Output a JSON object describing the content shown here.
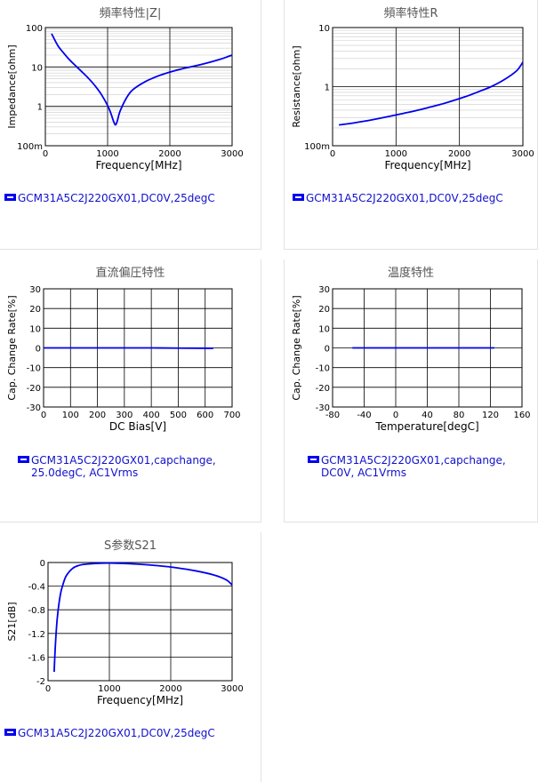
{
  "colors": {
    "series": "#0000ee",
    "grid": "#000000",
    "minor_grid": "#cccccc",
    "legend_text": "#1010cc",
    "title": "#555555"
  },
  "chart_data": [
    {
      "id": "impedance",
      "type": "line",
      "title": "頻率特性|Z|",
      "xlabel": "Frequency[MHz]",
      "ylabel": "Impedance[ohm]",
      "xlim": [
        0,
        3000
      ],
      "ylim": [
        0.1,
        100
      ],
      "y_scale": "log",
      "x_ticks": [
        "0",
        "1000",
        "2000",
        "3000"
      ],
      "y_ticks": [
        "100m",
        "1",
        "10",
        "100"
      ],
      "y_tick_values": [
        0.1,
        1,
        10,
        100
      ],
      "legend": "GCM31A5C2J220GX01,DC0V,25degC",
      "series": [
        {
          "x": [
            100,
            200,
            300,
            400,
            500,
            600,
            700,
            800,
            900,
            1000,
            1050,
            1100,
            1130,
            1160,
            1200,
            1300,
            1400,
            1600,
            1800,
            2000,
            2200,
            2500,
            2800,
            3000
          ],
          "y": [
            70,
            35,
            22,
            14.5,
            10.2,
            7.2,
            5.0,
            3.3,
            2.0,
            1.05,
            0.68,
            0.4,
            0.34,
            0.45,
            0.75,
            1.6,
            2.6,
            4.2,
            5.8,
            7.4,
            9.0,
            11.5,
            15.5,
            20
          ]
        }
      ]
    },
    {
      "id": "resistance",
      "type": "line",
      "title": "頻率特性R",
      "xlabel": "Frequency[MHz]",
      "ylabel": "Resistance[ohm]",
      "xlim": [
        0,
        3000
      ],
      "ylim": [
        0.1,
        10
      ],
      "y_scale": "log",
      "x_ticks": [
        "0",
        "1000",
        "2000",
        "3000"
      ],
      "y_ticks": [
        "100m",
        "1",
        "10"
      ],
      "y_tick_values": [
        0.1,
        1,
        10
      ],
      "legend": "GCM31A5C2J220GX01,DC0V,25degC",
      "series": [
        {
          "x": [
            100,
            300,
            500,
            700,
            900,
            1100,
            1300,
            1500,
            1700,
            1900,
            2100,
            2300,
            2500,
            2700,
            2900,
            3000
          ],
          "y": [
            0.225,
            0.24,
            0.26,
            0.285,
            0.315,
            0.35,
            0.39,
            0.44,
            0.5,
            0.58,
            0.68,
            0.82,
            1.0,
            1.3,
            1.85,
            2.6
          ]
        }
      ]
    },
    {
      "id": "dc-bias",
      "type": "line",
      "title": "直流偏圧特性",
      "xlabel": "DC Bias[V]",
      "ylabel": "Cap. Change Rate[%]",
      "xlim": [
        0,
        700
      ],
      "ylim": [
        -30,
        30
      ],
      "x_ticks": [
        "0",
        "100",
        "200",
        "300",
        "400",
        "500",
        "600",
        "700"
      ],
      "y_ticks": [
        "-30",
        "-20",
        "-10",
        "0",
        "10",
        "20",
        "30"
      ],
      "y_tick_values": [
        -30,
        -20,
        -10,
        0,
        10,
        20,
        30
      ],
      "legend": "GCM31A5C2J220GX01,capchange, 25.0degC, AC1Vrms",
      "series": [
        {
          "x": [
            0,
            100,
            200,
            300,
            400,
            500,
            630
          ],
          "y": [
            0,
            0,
            0,
            0,
            0,
            -0.1,
            -0.2
          ]
        }
      ]
    },
    {
      "id": "temperature",
      "type": "line",
      "title": "温度特性",
      "xlabel": "Temperature[degC]",
      "ylabel": "Cap. Change Rate[%]",
      "xlim": [
        -80,
        160
      ],
      "ylim": [
        -30,
        30
      ],
      "x_ticks": [
        "-80",
        "-40",
        "0",
        "40",
        "80",
        "120",
        "160"
      ],
      "y_ticks": [
        "-30",
        "-20",
        "-10",
        "0",
        "10",
        "20",
        "30"
      ],
      "y_tick_values": [
        -30,
        -20,
        -10,
        0,
        10,
        20,
        30
      ],
      "legend": "GCM31A5C2J220GX01,capchange, DC0V, AC1Vrms",
      "series": [
        {
          "x": [
            -55,
            0,
            25,
            50,
            100,
            125
          ],
          "y": [
            0,
            0,
            0,
            0,
            0,
            0
          ]
        }
      ]
    },
    {
      "id": "s21",
      "type": "line",
      "title": "S参数S21",
      "xlabel": "Frequency[MHz]",
      "ylabel": "S21[dB]",
      "xlim": [
        0,
        3000
      ],
      "ylim": [
        -2,
        0
      ],
      "x_ticks": [
        "0",
        "1000",
        "2000",
        "3000"
      ],
      "y_ticks": [
        "-2",
        "-1.6",
        "-1.2",
        "-0.8",
        "-0.4",
        "0"
      ],
      "y_tick_values": [
        -2,
        -1.6,
        -1.2,
        -0.8,
        -0.4,
        0
      ],
      "legend": "GCM31A5C2J220GX01,DC0V,25degC",
      "series": [
        {
          "x": [
            100,
            120,
            150,
            200,
            250,
            300,
            400,
            500,
            600,
            800,
            1000,
            1200,
            1500,
            1800,
            2100,
            2400,
            2700,
            2900,
            3000
          ],
          "y": [
            -1.85,
            -1.4,
            -0.95,
            -0.55,
            -0.35,
            -0.22,
            -0.1,
            -0.05,
            -0.03,
            -0.015,
            -0.01,
            -0.015,
            -0.03,
            -0.055,
            -0.09,
            -0.14,
            -0.21,
            -0.29,
            -0.38
          ]
        }
      ]
    }
  ]
}
